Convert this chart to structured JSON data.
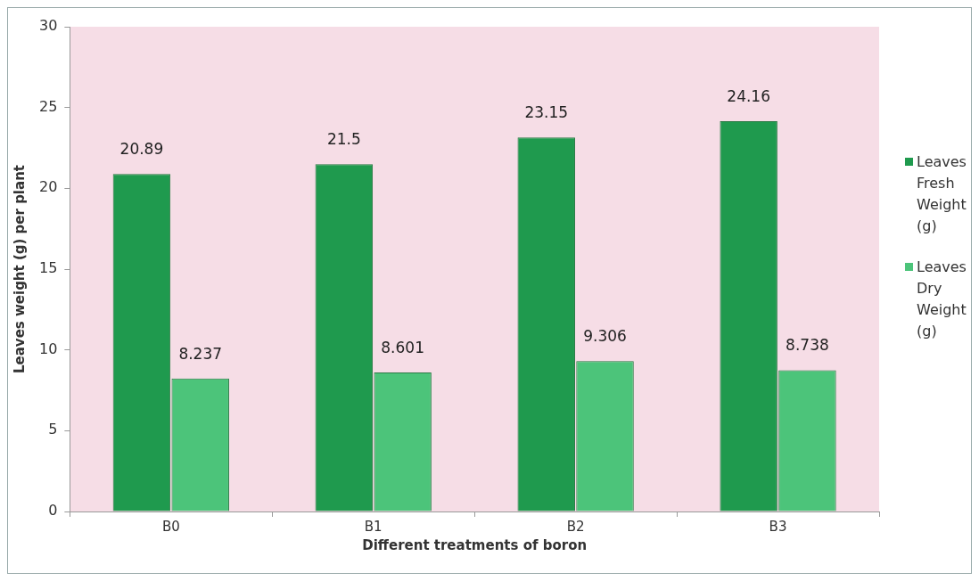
{
  "chart_data": {
    "type": "bar",
    "xlabel": "Different treatments of boron",
    "ylabel": "Leaves weight (g) per plant",
    "categories": [
      "B0",
      "B1",
      "B2",
      "B3"
    ],
    "series": [
      {
        "name": "Leaves Fresh Weight (g)",
        "color": "#1f9a4e",
        "values": [
          20.89,
          21.5,
          23.15,
          24.16
        ]
      },
      {
        "name": "Leaves Dry Weight (g)",
        "color": "#4cc47a",
        "values": [
          8.237,
          8.601,
          9.306,
          8.738
        ]
      }
    ],
    "ylim": [
      0,
      30
    ],
    "yticks": [
      0,
      5,
      10,
      15,
      20,
      25,
      30
    ],
    "grid": false,
    "legend": "right",
    "data_labels": true
  }
}
